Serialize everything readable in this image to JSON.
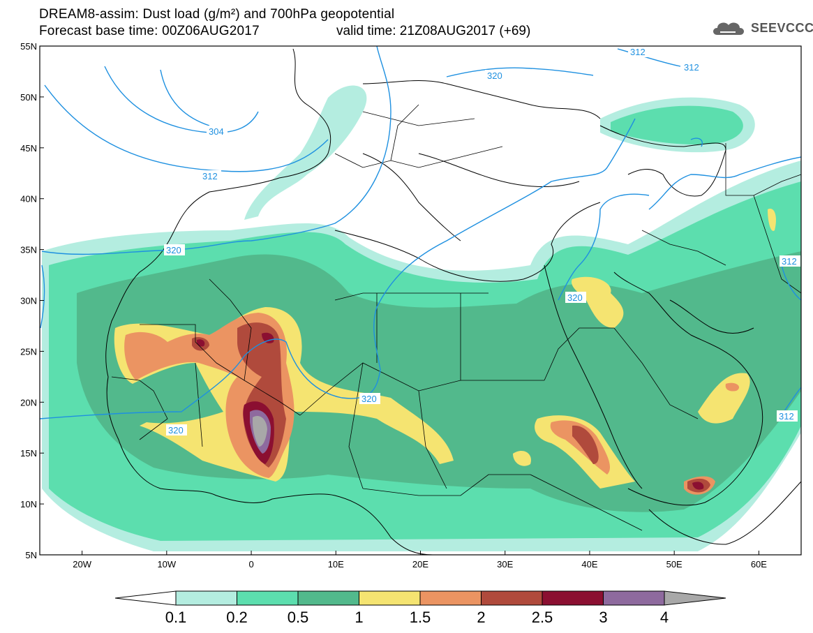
{
  "title": {
    "line1": "DREAM8-assim: Dust load (g/m²) and 700hPa geopotential",
    "line2": "Forecast base time: 00Z06AUG2017",
    "valid": "valid time: 21Z08AUG2017 (+69)"
  },
  "logo": {
    "text": "SEEVCCC",
    "icon": "cloud-icon"
  },
  "map": {
    "lat_labels": [
      "55N",
      "50N",
      "45N",
      "40N",
      "35N",
      "30N",
      "25N",
      "20N",
      "15N",
      "10N",
      "5N"
    ],
    "lon_labels": [
      "20W",
      "10W",
      "0",
      "10E",
      "20E",
      "30E",
      "40E",
      "50E",
      "60E"
    ],
    "lat_range": [
      5,
      55
    ],
    "lon_range": [
      -25,
      65
    ],
    "geopotential_labels": [
      "304",
      "312",
      "320",
      "312",
      "320",
      "320",
      "320",
      "312",
      "312",
      "312",
      "320"
    ],
    "dust_load_levels": [
      0.1,
      0.2,
      0.5,
      1,
      1.5,
      2,
      2.5,
      3,
      4
    ],
    "colors": {
      "c01": "#b4ede0",
      "c02": "#5cdeae",
      "c05": "#52b98c",
      "c1": "#f5e471",
      "c15": "#eb9462",
      "c2": "#b04a3c",
      "c25": "#8b0f31",
      "c3": "#8e6a9e",
      "c4": "#a8a8a8",
      "contour": "#1e90e0"
    }
  },
  "colorbar": {
    "labels": [
      "0.1",
      "0.2",
      "0.5",
      "1",
      "1.5",
      "2",
      "2.5",
      "3",
      "4"
    ]
  }
}
